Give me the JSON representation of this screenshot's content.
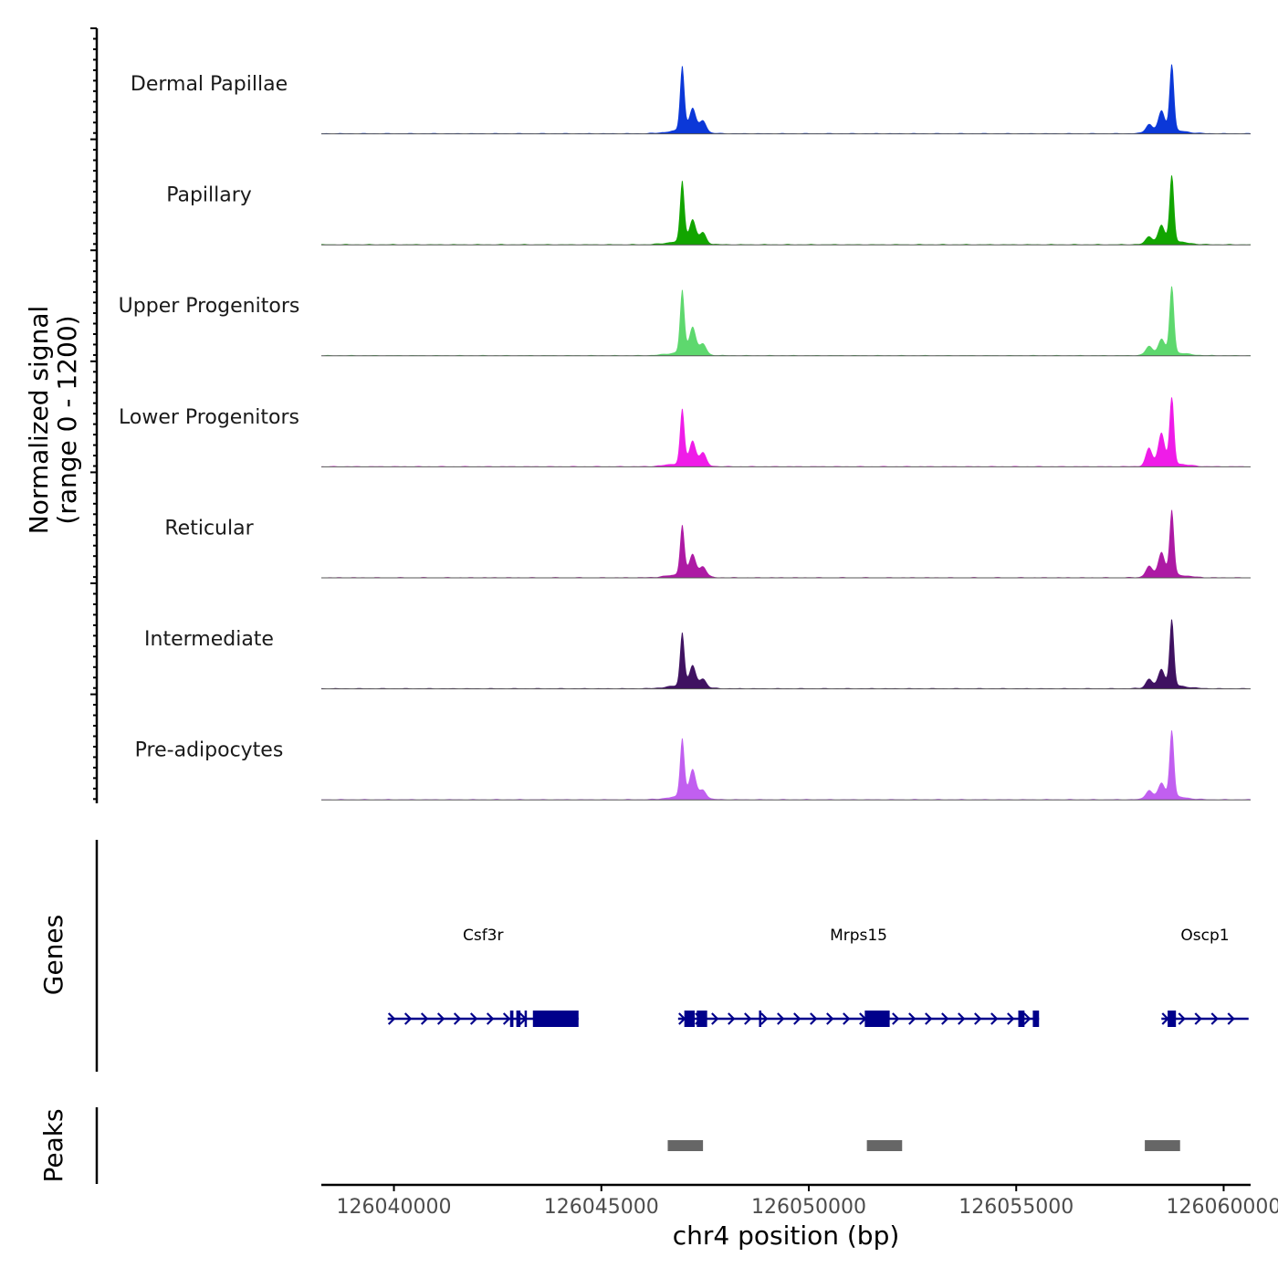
{
  "chart_data": {
    "type": "area",
    "subtype": "coverage-track",
    "chromosome": "chr4",
    "x_range": [
      126038250,
      126060650
    ],
    "xlabel": "chr4 position (bp)",
    "xticks": [
      126040000,
      126045000,
      126050000,
      126055000,
      126060000
    ],
    "xtick_labels": [
      "126040000",
      "126045000",
      "126050000",
      "126055000",
      "126060000"
    ],
    "ylabel_line1": "Normalized signal",
    "ylabel_line2": "(range 0 - 1200)",
    "y_range": [
      0,
      1200
    ],
    "peak_centers": [
      126047000,
      126058700
    ],
    "series": [
      {
        "name": "Dermal Papillae",
        "color": "#0b38d8",
        "peaks": [
          {
            "x": 126046950,
            "h": 0.94
          },
          {
            "x": 126047200,
            "h": 0.33
          },
          {
            "x": 126047450,
            "h": 0.17
          },
          {
            "x": 126058500,
            "h": 0.29
          },
          {
            "x": 126058750,
            "h": 1.0
          },
          {
            "x": 126058200,
            "h": 0.12
          }
        ]
      },
      {
        "name": "Papillary",
        "color": "#12a500",
        "peaks": [
          {
            "x": 126046950,
            "h": 0.88
          },
          {
            "x": 126047200,
            "h": 0.32
          },
          {
            "x": 126047450,
            "h": 0.15
          },
          {
            "x": 126058500,
            "h": 0.24
          },
          {
            "x": 126058750,
            "h": 1.0
          },
          {
            "x": 126058200,
            "h": 0.1
          }
        ]
      },
      {
        "name": "Upper Progenitors",
        "color": "#5ed86e",
        "peaks": [
          {
            "x": 126046950,
            "h": 0.91
          },
          {
            "x": 126047200,
            "h": 0.38
          },
          {
            "x": 126047450,
            "h": 0.15
          },
          {
            "x": 126058500,
            "h": 0.2
          },
          {
            "x": 126058750,
            "h": 1.0
          },
          {
            "x": 126058200,
            "h": 0.12
          }
        ]
      },
      {
        "name": "Lower Progenitors",
        "color": "#ef1ce8",
        "peaks": [
          {
            "x": 126046950,
            "h": 0.79
          },
          {
            "x": 126047200,
            "h": 0.33
          },
          {
            "x": 126047450,
            "h": 0.18
          },
          {
            "x": 126058500,
            "h": 0.45
          },
          {
            "x": 126058750,
            "h": 1.0
          },
          {
            "x": 126058200,
            "h": 0.25
          }
        ]
      },
      {
        "name": "Reticular",
        "color": "#ad1aa4",
        "peaks": [
          {
            "x": 126046950,
            "h": 0.72
          },
          {
            "x": 126047200,
            "h": 0.3
          },
          {
            "x": 126047450,
            "h": 0.14
          },
          {
            "x": 126058500,
            "h": 0.33
          },
          {
            "x": 126058750,
            "h": 0.94
          },
          {
            "x": 126058200,
            "h": 0.15
          }
        ]
      },
      {
        "name": "Intermediate",
        "color": "#3f1261",
        "peaks": [
          {
            "x": 126046950,
            "h": 0.77
          },
          {
            "x": 126047200,
            "h": 0.29
          },
          {
            "x": 126047450,
            "h": 0.12
          },
          {
            "x": 126058500,
            "h": 0.24
          },
          {
            "x": 126058750,
            "h": 0.98
          },
          {
            "x": 126058200,
            "h": 0.12
          }
        ]
      },
      {
        "name": "Pre-adipocytes",
        "color": "#c15ff0",
        "peaks": [
          {
            "x": 126046950,
            "h": 0.85
          },
          {
            "x": 126047200,
            "h": 0.4
          },
          {
            "x": 126047450,
            "h": 0.12
          },
          {
            "x": 126058500,
            "h": 0.2
          },
          {
            "x": 126058750,
            "h": 0.99
          },
          {
            "x": 126058200,
            "h": 0.12
          }
        ]
      }
    ],
    "genes_track_label": "Genes",
    "genes": [
      {
        "name": "Csf3r",
        "start": 126039850,
        "end": 126044450,
        "strand": "+",
        "exons": [
          [
            126042800,
            126042880
          ],
          [
            126042950,
            126043050
          ],
          [
            126043150,
            126043200
          ],
          [
            126043350,
            126044450
          ]
        ]
      },
      {
        "name": "Mrps15",
        "start": 126046850,
        "end": 126055550,
        "strand": "+",
        "exons": [
          [
            126047000,
            126047250
          ],
          [
            126047300,
            126047550
          ],
          [
            126048800,
            126048830
          ],
          [
            126051350,
            126051950
          ],
          [
            126055050,
            126055200
          ],
          [
            126055400,
            126055550
          ]
        ]
      },
      {
        "name": "Oscp1",
        "start": 126058500,
        "end": 126060600,
        "strand": "+",
        "exons": [
          [
            126058650,
            126058850
          ]
        ]
      }
    ],
    "peaks_track_label": "Peaks",
    "peak_regions": [
      [
        126046600,
        126047450
      ],
      [
        126051400,
        126052250
      ],
      [
        126058100,
        126058950
      ]
    ]
  }
}
